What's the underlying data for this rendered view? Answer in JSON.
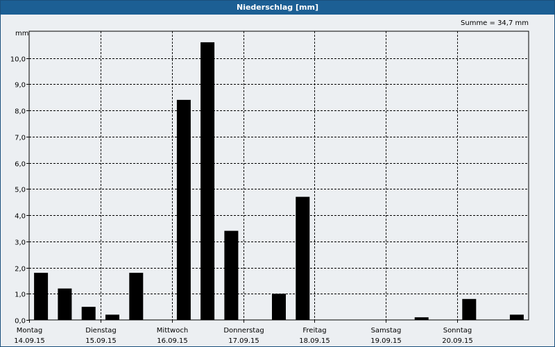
{
  "title": "Niederschlag [mm]",
  "summary": "Summe = 34,7 mm",
  "chart_data": {
    "type": "bar",
    "title": "Niederschlag [mm]",
    "ylabel": "mm",
    "ylim": [
      0,
      11
    ],
    "yticks": [
      "0,0",
      "1,0",
      "2,0",
      "3,0",
      "4,0",
      "5,0",
      "6,0",
      "7,0",
      "8,0",
      "9,0",
      "10,0"
    ],
    "days": [
      {
        "name": "Montag",
        "date": "14.09.15"
      },
      {
        "name": "Dienstag",
        "date": "15.09.15"
      },
      {
        "name": "Mittwoch",
        "date": "16.09.15"
      },
      {
        "name": "Donnerstag",
        "date": "17.09.15"
      },
      {
        "name": "Freitag",
        "date": "18.09.15"
      },
      {
        "name": "Samstag",
        "date": "19.09.15"
      },
      {
        "name": "Sonntag",
        "date": "20.09.15"
      }
    ],
    "bars_per_day": 3,
    "values": [
      1.8,
      1.2,
      0.5,
      0.2,
      1.8,
      0,
      8.4,
      10.6,
      3.4,
      0,
      1.0,
      4.7,
      0,
      0,
      0,
      0,
      0.1,
      0,
      0.8,
      0,
      0.2
    ],
    "grid": true
  }
}
